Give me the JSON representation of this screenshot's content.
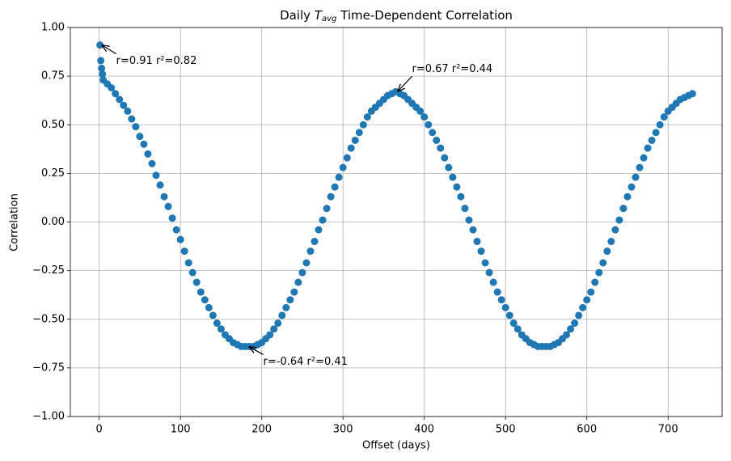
{
  "chart_data": {
    "type": "scatter",
    "title": {
      "prefix": "Daily ",
      "symbol": "T",
      "subscript": "avg",
      "suffix": " Time-Dependent Correlation"
    },
    "xlabel": "Offset (days)",
    "ylabel": "Correlation",
    "x": [
      1,
      2,
      3,
      4,
      5,
      10,
      15,
      20,
      25,
      30,
      35,
      40,
      45,
      50,
      55,
      60,
      65,
      70,
      75,
      80,
      85,
      90,
      95,
      100,
      105,
      110,
      115,
      120,
      125,
      130,
      135,
      140,
      145,
      150,
      155,
      160,
      165,
      170,
      175,
      180,
      185,
      190,
      195,
      200,
      205,
      210,
      215,
      220,
      225,
      230,
      235,
      240,
      245,
      250,
      255,
      260,
      265,
      270,
      275,
      280,
      285,
      290,
      295,
      300,
      305,
      310,
      315,
      320,
      325,
      330,
      335,
      340,
      345,
      350,
      355,
      360,
      365,
      370,
      375,
      380,
      385,
      390,
      395,
      400,
      405,
      410,
      415,
      420,
      425,
      430,
      435,
      440,
      445,
      450,
      455,
      460,
      465,
      470,
      475,
      480,
      485,
      490,
      495,
      500,
      505,
      510,
      515,
      520,
      525,
      530,
      535,
      540,
      545,
      550,
      555,
      560,
      565,
      570,
      575,
      580,
      585,
      590,
      595,
      600,
      605,
      610,
      615,
      620,
      625,
      630,
      635,
      640,
      645,
      650,
      655,
      660,
      665,
      670,
      675,
      680,
      685,
      690,
      695,
      700,
      705,
      710,
      715,
      720,
      725,
      730
    ],
    "series": [
      {
        "color": "#1f77b4",
        "values": [
          0.91,
          0.83,
          0.79,
          0.76,
          0.73,
          0.71,
          0.69,
          0.66,
          0.63,
          0.6,
          0.57,
          0.53,
          0.49,
          0.44,
          0.4,
          0.35,
          0.3,
          0.24,
          0.19,
          0.13,
          0.08,
          0.02,
          -0.04,
          -0.09,
          -0.15,
          -0.21,
          -0.26,
          -0.31,
          -0.36,
          -0.4,
          -0.44,
          -0.48,
          -0.52,
          -0.55,
          -0.58,
          -0.6,
          -0.62,
          -0.63,
          -0.64,
          -0.64,
          -0.64,
          -0.64,
          -0.63,
          -0.62,
          -0.6,
          -0.58,
          -0.55,
          -0.52,
          -0.48,
          -0.44,
          -0.4,
          -0.36,
          -0.31,
          -0.26,
          -0.21,
          -0.15,
          -0.1,
          -0.04,
          0.01,
          0.07,
          0.13,
          0.18,
          0.23,
          0.28,
          0.33,
          0.38,
          0.42,
          0.46,
          0.5,
          0.54,
          0.57,
          0.59,
          0.61,
          0.63,
          0.65,
          0.66,
          0.67,
          0.66,
          0.65,
          0.63,
          0.61,
          0.59,
          0.57,
          0.54,
          0.5,
          0.46,
          0.42,
          0.38,
          0.33,
          0.28,
          0.23,
          0.18,
          0.13,
          0.07,
          0.01,
          -0.04,
          -0.1,
          -0.15,
          -0.21,
          -0.26,
          -0.31,
          -0.36,
          -0.4,
          -0.44,
          -0.48,
          -0.52,
          -0.55,
          -0.58,
          -0.6,
          -0.62,
          -0.63,
          -0.64,
          -0.64,
          -0.64,
          -0.64,
          -0.63,
          -0.62,
          -0.6,
          -0.58,
          -0.55,
          -0.52,
          -0.48,
          -0.44,
          -0.4,
          -0.36,
          -0.31,
          -0.26,
          -0.21,
          -0.15,
          -0.1,
          -0.04,
          0.01,
          0.07,
          0.13,
          0.18,
          0.23,
          0.28,
          0.33,
          0.38,
          0.42,
          0.46,
          0.5,
          0.54,
          0.57,
          0.59,
          0.61,
          0.63,
          0.64,
          0.65,
          0.66
        ]
      }
    ],
    "xlim": [
      -35.45,
      766.45
    ],
    "ylim": [
      -1,
      1
    ],
    "xticks": [
      0,
      100,
      200,
      300,
      400,
      500,
      600,
      700
    ],
    "yticks": [
      {
        "value": -1,
        "label": "−1.00"
      },
      {
        "value": -0.75,
        "label": "−0.75"
      },
      {
        "value": -0.5,
        "label": "−0.50"
      },
      {
        "value": -0.25,
        "label": "−0.25"
      },
      {
        "value": 0,
        "label": "0.00"
      },
      {
        "value": 0.25,
        "label": "0.25"
      },
      {
        "value": 0.5,
        "label": "0.50"
      },
      {
        "value": 0.75,
        "label": "0.75"
      },
      {
        "value": 1,
        "label": "1.00"
      }
    ],
    "grid": true,
    "annotations": [
      {
        "text": "r=0.91 r²=0.82",
        "x": 1,
        "y": 0.91
      },
      {
        "text": "r=0.67 r²=0.44",
        "x": 365,
        "y": 0.67
      },
      {
        "text": "r=-0.64 r²=0.41",
        "x": 182,
        "y": -0.64
      }
    ]
  }
}
